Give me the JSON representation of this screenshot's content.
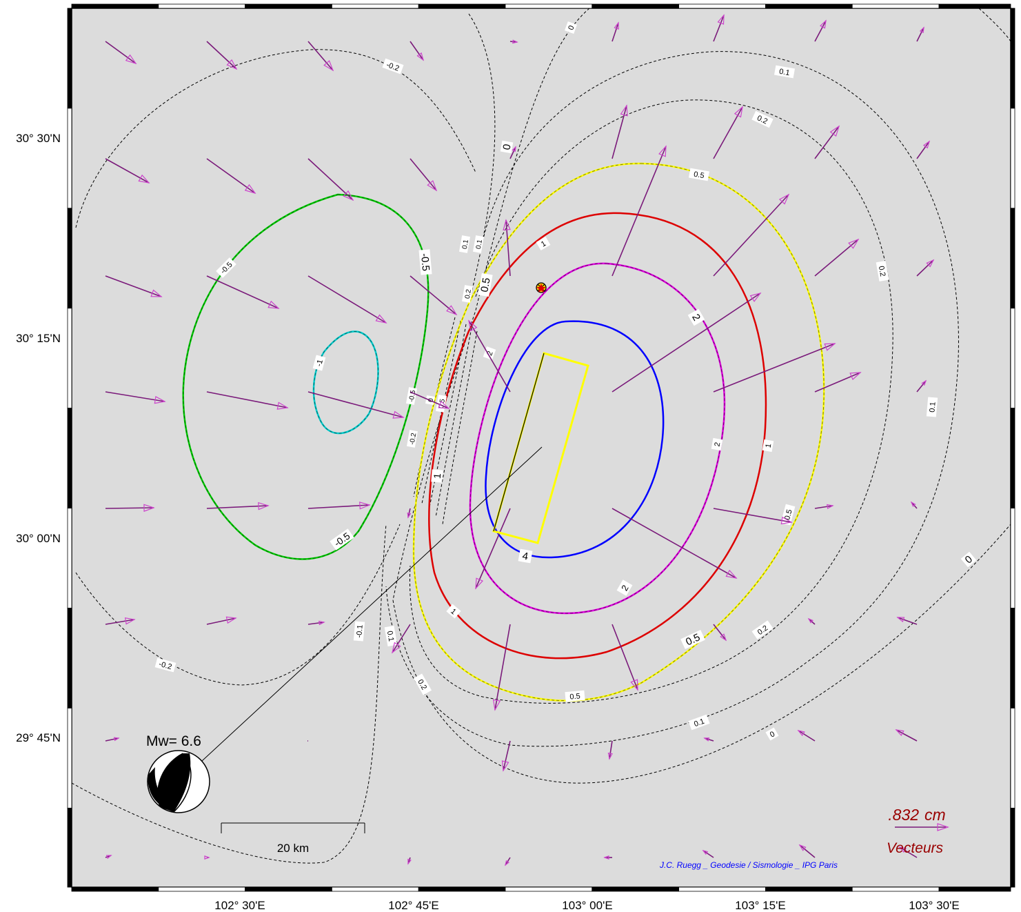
{
  "map": {
    "lon_labels": [
      "102° 30'E",
      "102° 45'E",
      "103° 00'E",
      "103° 15'E",
      "103° 30'E"
    ],
    "lat_labels": [
      "30° 30'N",
      "30° 15'N",
      "30° 00'N",
      "29° 45'N"
    ],
    "background_color": "#dcdcdc",
    "magnitude_label": "Mw= 6.6",
    "scale_bar_label": "20 km",
    "vector_scale_value": ".832",
    "vector_scale_unit": "cm",
    "vector_label": "Vecteurs",
    "credit": "J.C. Ruegg _ Geodesie / Sismologie _ IPG Paris",
    "colors": {
      "vectors": "#7a1a7a",
      "vector_heads": "#cc44cc",
      "contour_4": "#0000ff",
      "contour_2": "#dd00dd",
      "contour_1": "#dd0000",
      "contour_0_5": "#ffff00",
      "contour_neg_0_5": "#00cc00",
      "contour_neg_1": "#00cccc",
      "fault_plane": "#ffff00",
      "legend_text": "#990000",
      "credit_text": "#0000ff"
    },
    "contour_labels": {
      "c4": "4",
      "c2": "2",
      "c1": "1",
      "c05": "0.5",
      "c02": "0.2",
      "c01": "0.1",
      "c0": "0",
      "cn01": "-0.1",
      "cn02": "-0.2",
      "cn05": "-0.5",
      "cn1": "-1"
    }
  }
}
